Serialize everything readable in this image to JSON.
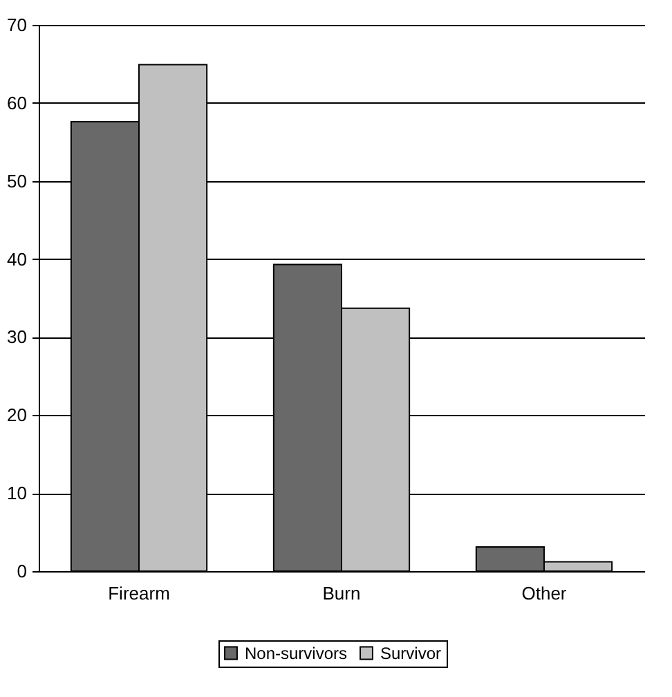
{
  "chart_data": {
    "type": "bar",
    "categories": [
      "Firearm",
      "Burn",
      "Other"
    ],
    "series": [
      {
        "name": "Non-survivors",
        "color": "#696969",
        "values": [
          57.6,
          39.3,
          3.1
        ]
      },
      {
        "name": "Survivor",
        "color": "#c0c0c0",
        "values": [
          64.9,
          33.7,
          1.2
        ]
      }
    ],
    "ylim": [
      0,
      70
    ],
    "yticks": [
      0,
      10,
      20,
      30,
      40,
      50,
      60,
      70
    ],
    "grid": "y",
    "legend": "bottom"
  }
}
